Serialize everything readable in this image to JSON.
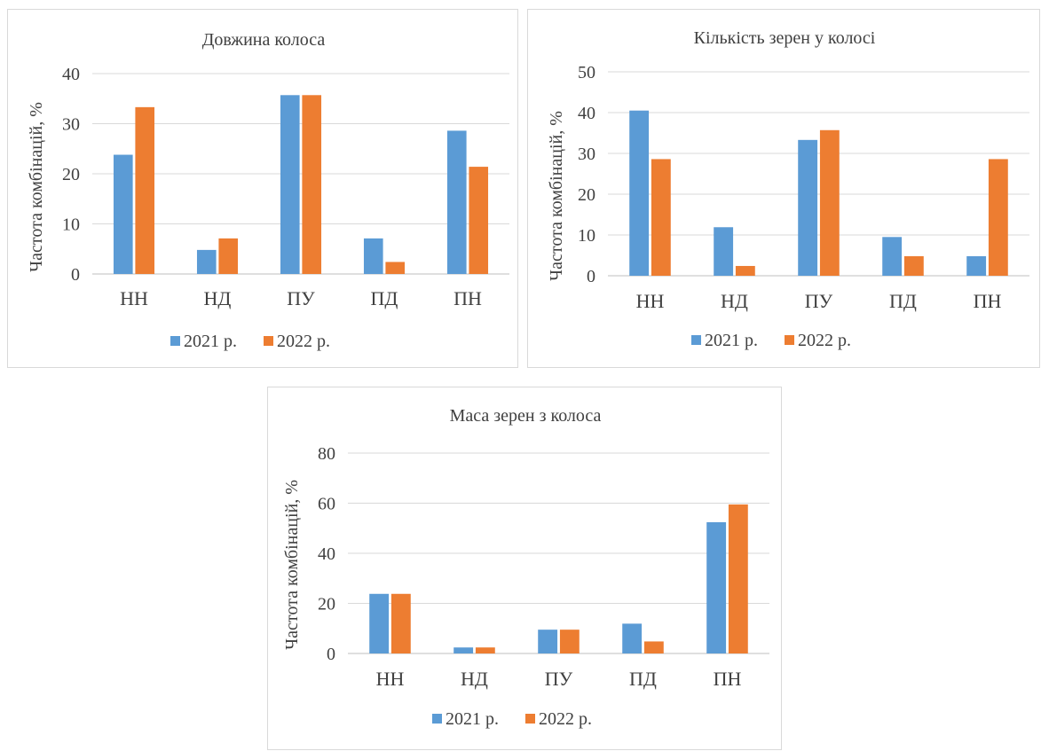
{
  "colors": {
    "series_2021": "#5b9bd5",
    "series_2022": "#ed7d31"
  },
  "chart_data": [
    {
      "type": "bar",
      "title": "Довжина колоса",
      "ylabel": "Частота комбінацій, %",
      "xlabel": "",
      "categories": [
        "НН",
        "НД",
        "ПУ",
        "ПД",
        "ПН"
      ],
      "yticks": [
        "0",
        "10",
        "20",
        "30",
        "40"
      ],
      "ylim": [
        0,
        40
      ],
      "series": [
        {
          "name": "2021 р.",
          "values": [
            23.8,
            4.8,
            35.7,
            7.1,
            28.6
          ]
        },
        {
          "name": "2022 р.",
          "values": [
            33.3,
            7.1,
            35.7,
            2.4,
            21.4
          ]
        }
      ],
      "legend": "bottom",
      "grid": true
    },
    {
      "type": "bar",
      "title": "Кількість зерен у колосі",
      "ylabel": "Частота комбінацій, %",
      "xlabel": "",
      "categories": [
        "НН",
        "НД",
        "ПУ",
        "ПД",
        "ПН"
      ],
      "yticks": [
        "0",
        "10",
        "20",
        "30",
        "40",
        "50"
      ],
      "ylim": [
        0,
        50
      ],
      "series": [
        {
          "name": "2021 р.",
          "values": [
            40.5,
            11.9,
            33.3,
            9.5,
            4.8
          ]
        },
        {
          "name": "2022 р.",
          "values": [
            28.6,
            2.4,
            35.7,
            4.8,
            28.6
          ]
        }
      ],
      "legend": "bottom",
      "grid": true
    },
    {
      "type": "bar",
      "title": "Маса зерен з колоса",
      "ylabel": "Частота комбінацій, %",
      "xlabel": "",
      "categories": [
        "НН",
        "НД",
        "ПУ",
        "ПД",
        "ПН"
      ],
      "yticks": [
        "0",
        "20",
        "40",
        "60",
        "80"
      ],
      "ylim": [
        0,
        80
      ],
      "series": [
        {
          "name": "2021 р.",
          "values": [
            23.8,
            2.4,
            9.5,
            11.9,
            52.4
          ]
        },
        {
          "name": "2022 р.",
          "values": [
            23.8,
            2.4,
            9.5,
            4.8,
            59.5
          ]
        }
      ],
      "legend": "bottom",
      "grid": true
    }
  ]
}
